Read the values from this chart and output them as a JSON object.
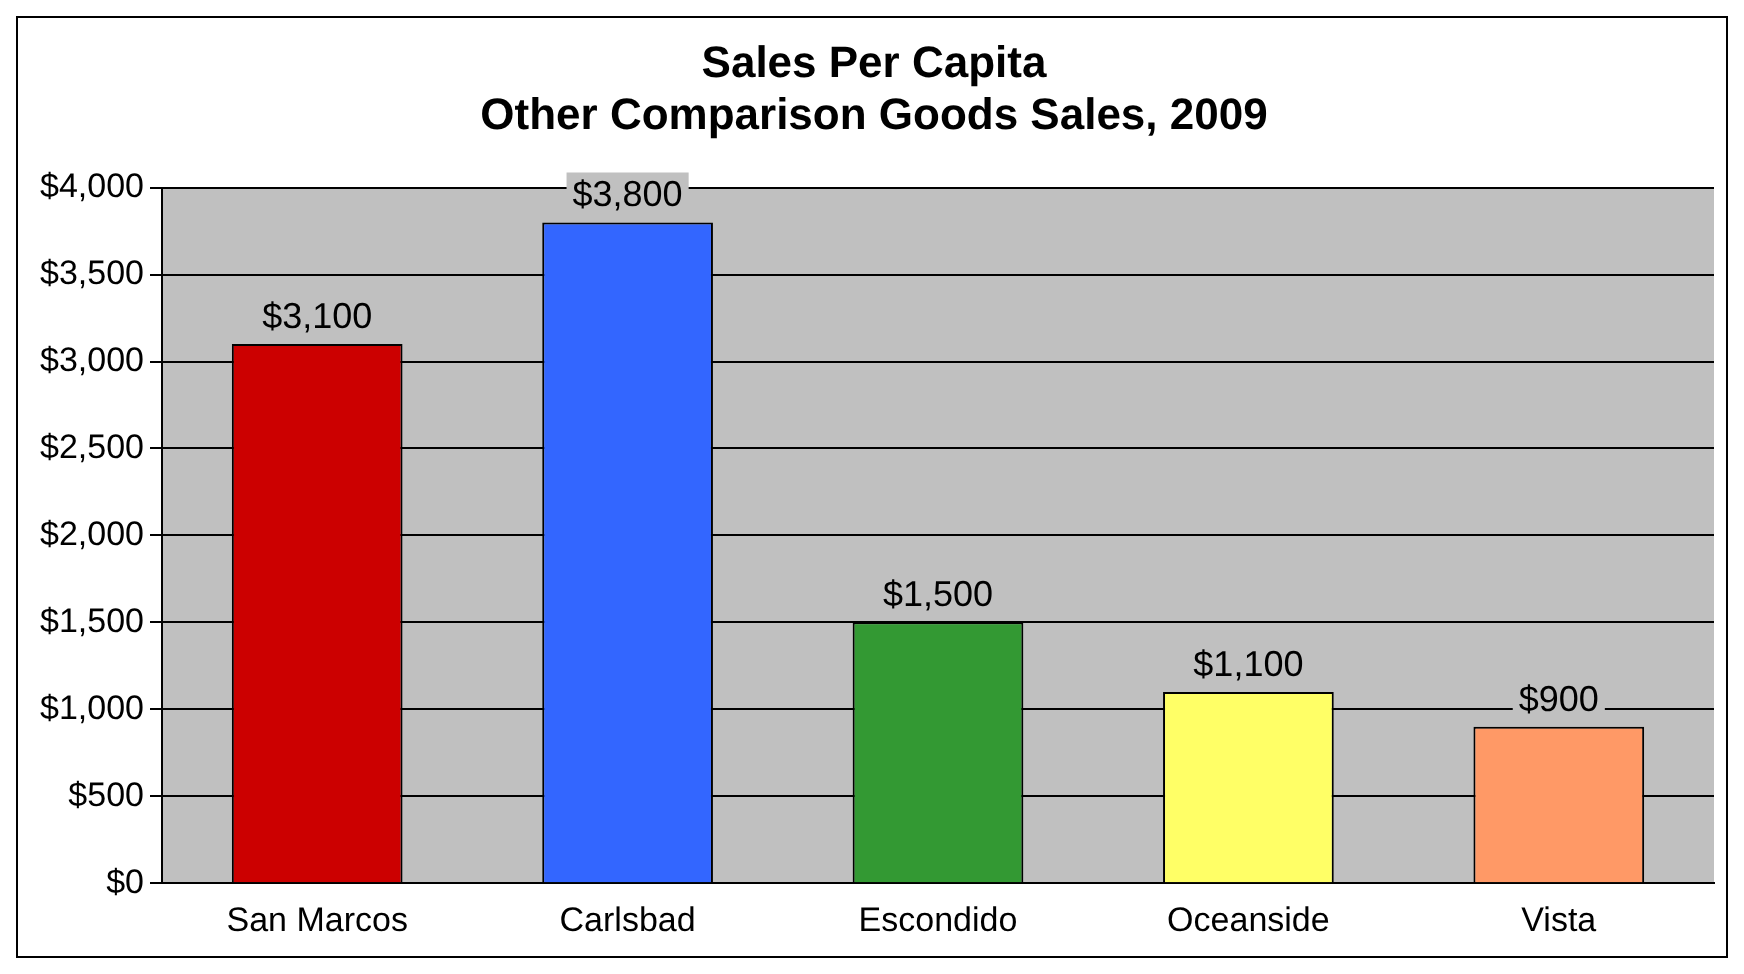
{
  "chart_data": {
    "type": "bar",
    "title": "Sales Per Capita",
    "subtitle": "Other Comparison Goods Sales, 2009",
    "categories": [
      "San Marcos",
      "Carlsbad",
      "Escondido",
      "Oceanside",
      "Vista"
    ],
    "values": [
      3100,
      3800,
      1500,
      1100,
      900
    ],
    "colors": [
      "#cc0000",
      "#3366ff",
      "#339933",
      "#ffff66",
      "#ff9966"
    ],
    "value_labels": [
      "$3,100",
      "$3,800",
      "$1,500",
      "$1,100",
      "$900"
    ],
    "ylim": [
      0,
      4000
    ],
    "yticks": [
      {
        "value": 0,
        "label": "$0"
      },
      {
        "value": 500,
        "label": "$500"
      },
      {
        "value": 1000,
        "label": "$1,000"
      },
      {
        "value": 1500,
        "label": "$1,500"
      },
      {
        "value": 2000,
        "label": "$2,000"
      },
      {
        "value": 2500,
        "label": "$2,500"
      },
      {
        "value": 3000,
        "label": "$3,000"
      },
      {
        "value": 3500,
        "label": "$3,500"
      },
      {
        "value": 4000,
        "label": "$4,000"
      }
    ],
    "grid": "y",
    "legend": false
  }
}
